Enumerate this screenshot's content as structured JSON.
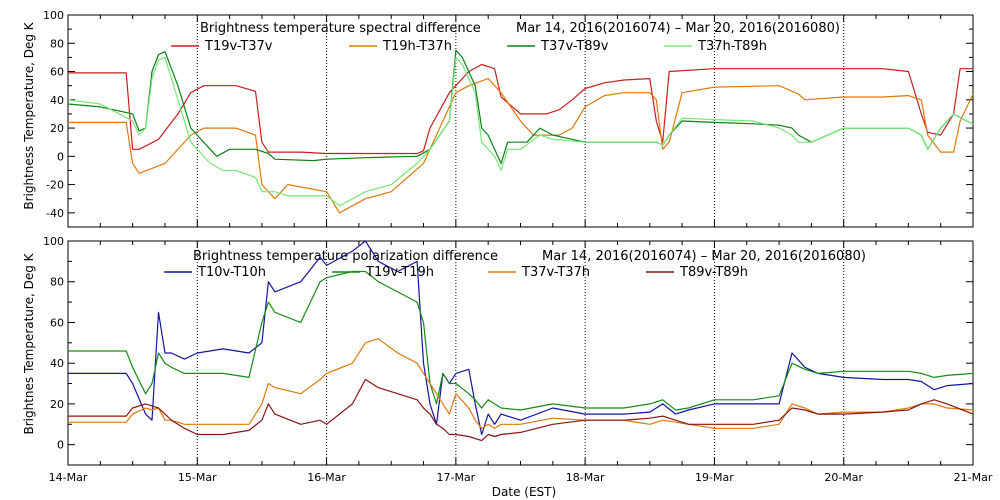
{
  "chart_data": [
    {
      "type": "line",
      "title": "Brightness temperature spectral difference",
      "date_range": "Mar 14, 2016(2016074)  – Mar 20, 2016(2016080)",
      "ylabel": "Brightness Temperature, Deg K",
      "xlabel": "",
      "ylim": [
        -50,
        100
      ],
      "yticks": [
        -40,
        -20,
        0,
        20,
        40,
        60,
        80,
        100
      ],
      "xlim": [
        14,
        21
      ],
      "grid": true,
      "legend_position": "top",
      "series": [
        {
          "name": "T19v-T37v",
          "color": "#c81e1e",
          "x": [
            14.0,
            14.45,
            14.5,
            14.55,
            14.7,
            14.85,
            14.95,
            15.05,
            15.3,
            15.45,
            15.5,
            15.55,
            15.8,
            16.0,
            16.3,
            16.7,
            16.75,
            16.8,
            16.95,
            17.1,
            17.2,
            17.3,
            17.35,
            17.5,
            17.7,
            17.8,
            17.9,
            18.0,
            18.15,
            18.3,
            18.5,
            18.55,
            18.6,
            18.65,
            19.0,
            19.5,
            20.0,
            20.3,
            20.5,
            20.6,
            20.65,
            20.75,
            20.85,
            20.9,
            21.0
          ],
          "y": [
            59,
            59,
            5,
            5,
            12,
            30,
            45,
            50,
            50,
            46,
            10,
            3,
            3,
            2,
            2,
            2,
            4,
            20,
            45,
            60,
            65,
            62,
            42,
            30,
            30,
            33,
            40,
            48,
            52,
            54,
            55,
            25,
            10,
            60,
            62,
            62,
            62,
            62,
            60,
            30,
            17,
            15,
            30,
            62,
            62
          ]
        },
        {
          "name": "T19h-T37h",
          "color": "#e0780a",
          "x": [
            14.0,
            14.45,
            14.5,
            14.55,
            14.75,
            14.95,
            15.05,
            15.2,
            15.3,
            15.45,
            15.5,
            15.6,
            15.7,
            16.0,
            16.1,
            16.3,
            16.5,
            16.75,
            16.8,
            16.9,
            17.0,
            17.1,
            17.25,
            17.35,
            17.5,
            17.6,
            17.7,
            17.8,
            17.9,
            18.0,
            18.15,
            18.3,
            18.5,
            18.55,
            18.6,
            18.65,
            18.75,
            19.0,
            19.5,
            19.65,
            19.7,
            20.0,
            20.3,
            20.5,
            20.6,
            20.65,
            20.75,
            20.85,
            20.9,
            21.0
          ],
          "y": [
            24,
            24,
            -5,
            -12,
            -5,
            15,
            20,
            20,
            20,
            15,
            -20,
            -30,
            -20,
            -25,
            -40,
            -30,
            -25,
            -5,
            5,
            25,
            45,
            50,
            55,
            45,
            25,
            15,
            15,
            15,
            20,
            35,
            43,
            45,
            45,
            40,
            5,
            10,
            45,
            49,
            50,
            44,
            40,
            42,
            42,
            43,
            40,
            15,
            3,
            3,
            25,
            44
          ]
        },
        {
          "name": "T37v-T89v",
          "color": "#0a8214",
          "x": [
            14.0,
            14.25,
            14.5,
            14.55,
            14.6,
            14.65,
            14.7,
            14.75,
            14.85,
            14.95,
            15.1,
            15.15,
            15.25,
            15.45,
            15.55,
            15.6,
            15.9,
            16.0,
            16.3,
            16.7,
            16.8,
            16.95,
            17.0,
            17.05,
            17.15,
            17.2,
            17.25,
            17.3,
            17.35,
            17.4,
            17.5,
            17.55,
            17.65,
            17.75,
            18.0,
            18.3,
            18.5,
            18.55,
            18.6,
            18.65,
            18.75,
            19.0,
            19.3,
            19.5,
            19.6,
            19.65,
            19.75,
            20.0,
            20.3,
            20.5,
            20.6,
            20.65,
            20.75,
            20.85,
            20.95,
            21.0
          ],
          "y": [
            37,
            35,
            30,
            18,
            20,
            60,
            72,
            74,
            50,
            20,
            5,
            0,
            5,
            5,
            2,
            -2,
            -3,
            -2,
            -1,
            0,
            5,
            25,
            75,
            70,
            50,
            20,
            15,
            5,
            -5,
            10,
            10,
            10,
            20,
            15,
            10,
            10,
            10,
            10,
            8,
            15,
            25,
            24,
            23,
            22,
            20,
            15,
            10,
            20,
            20,
            20,
            15,
            5,
            20,
            30,
            25,
            23
          ]
        },
        {
          "name": "T37h-T89h",
          "color": "#78e678",
          "x": [
            14.0,
            14.25,
            14.5,
            14.55,
            14.6,
            14.65,
            14.7,
            14.75,
            14.85,
            14.95,
            15.1,
            15.2,
            15.3,
            15.45,
            15.5,
            15.6,
            15.7,
            16.0,
            16.1,
            16.3,
            16.5,
            16.7,
            16.8,
            16.95,
            17.0,
            17.05,
            17.15,
            17.2,
            17.3,
            17.35,
            17.4,
            17.5,
            17.65,
            17.75,
            18.0,
            18.3,
            18.5,
            18.55,
            18.6,
            18.65,
            18.75,
            19.0,
            19.3,
            19.5,
            19.6,
            19.65,
            19.75,
            20.0,
            20.3,
            20.5,
            20.6,
            20.65,
            20.75,
            20.85,
            20.95,
            21.0
          ],
          "y": [
            40,
            37,
            25,
            15,
            20,
            55,
            68,
            70,
            40,
            10,
            -5,
            -10,
            -10,
            -15,
            -25,
            -25,
            -28,
            -28,
            -35,
            -25,
            -20,
            -5,
            5,
            25,
            70,
            65,
            45,
            10,
            0,
            -10,
            5,
            5,
            15,
            12,
            10,
            10,
            10,
            10,
            8,
            15,
            27,
            26,
            25,
            20,
            15,
            10,
            10,
            20,
            20,
            20,
            15,
            5,
            20,
            30,
            25,
            23
          ]
        }
      ]
    },
    {
      "type": "line",
      "title": "Brightness temperature polarization difference",
      "date_range": "Mar 14, 2016(2016074)  – Mar 20, 2016(2016080)",
      "ylabel": "Brightnes Temperature, Deg K",
      "xlabel": "Date (EST)",
      "ylim": [
        -10,
        100
      ],
      "yticks": [
        0,
        20,
        40,
        60,
        80,
        100
      ],
      "xlim": [
        14,
        21
      ],
      "xticks": [
        14,
        15,
        16,
        17,
        18,
        19,
        20,
        21
      ],
      "xticklabels": [
        "14-Mar",
        "15-Mar",
        "16-Mar",
        "17-Mar",
        "18-Mar",
        "19-Mar",
        "20-Mar",
        "21-Mar"
      ],
      "grid": true,
      "legend_position": "top",
      "series": [
        {
          "name": "T10v-T10h",
          "color": "#1414a0",
          "x": [
            14.0,
            14.45,
            14.5,
            14.6,
            14.65,
            14.7,
            14.75,
            14.8,
            14.9,
            15.0,
            15.2,
            15.4,
            15.5,
            15.55,
            15.6,
            15.8,
            15.95,
            16.0,
            16.2,
            16.3,
            16.4,
            16.55,
            16.7,
            16.75,
            16.8,
            16.85,
            16.9,
            16.95,
            17.0,
            17.1,
            17.15,
            17.2,
            17.25,
            17.3,
            17.35,
            17.5,
            17.75,
            18.0,
            18.3,
            18.5,
            18.6,
            18.7,
            18.8,
            19.0,
            19.3,
            19.5,
            19.6,
            19.7,
            19.8,
            20.0,
            20.3,
            20.5,
            20.6,
            20.7,
            20.8,
            21.0
          ],
          "y": [
            35,
            35,
            30,
            15,
            12,
            65,
            45,
            45,
            42,
            45,
            47,
            45,
            50,
            80,
            75,
            80,
            92,
            88,
            95,
            100,
            90,
            85,
            90,
            40,
            20,
            10,
            35,
            30,
            35,
            37,
            20,
            5,
            15,
            10,
            15,
            12,
            18,
            15,
            15,
            16,
            20,
            15,
            17,
            20,
            20,
            20,
            45,
            38,
            35,
            33,
            32,
            32,
            31,
            27,
            29,
            30
          ]
        },
        {
          "name": "T19v-T19h",
          "color": "#148c14",
          "x": [
            14.0,
            14.45,
            14.5,
            14.6,
            14.65,
            14.7,
            14.75,
            14.8,
            14.9,
            15.0,
            15.2,
            15.4,
            15.5,
            15.55,
            15.6,
            15.8,
            15.95,
            16.0,
            16.2,
            16.3,
            16.4,
            16.55,
            16.7,
            16.75,
            16.8,
            16.85,
            16.9,
            16.95,
            17.0,
            17.1,
            17.15,
            17.2,
            17.25,
            17.3,
            17.35,
            17.5,
            17.75,
            18.0,
            18.3,
            18.5,
            18.6,
            18.7,
            18.8,
            19.0,
            19.3,
            19.5,
            19.6,
            19.7,
            19.8,
            20.0,
            20.3,
            20.5,
            20.6,
            20.7,
            20.8,
            21.0
          ],
          "y": [
            46,
            46,
            38,
            25,
            30,
            45,
            40,
            38,
            35,
            35,
            35,
            33,
            60,
            70,
            65,
            60,
            80,
            82,
            85,
            85,
            80,
            75,
            70,
            60,
            30,
            20,
            35,
            30,
            30,
            25,
            22,
            18,
            22,
            20,
            18,
            17,
            20,
            18,
            18,
            20,
            22,
            17,
            18,
            22,
            22,
            24,
            40,
            37,
            35,
            36,
            36,
            36,
            35,
            33,
            34,
            35
          ]
        },
        {
          "name": "T37v-T37h",
          "color": "#e0780a",
          "x": [
            14.0,
            14.45,
            14.5,
            14.6,
            14.65,
            14.7,
            14.75,
            14.8,
            14.9,
            15.0,
            15.2,
            15.4,
            15.5,
            15.55,
            15.6,
            15.8,
            15.95,
            16.0,
            16.2,
            16.3,
            16.4,
            16.55,
            16.7,
            16.75,
            16.8,
            16.85,
            16.9,
            16.95,
            17.0,
            17.1,
            17.15,
            17.2,
            17.25,
            17.3,
            17.35,
            17.5,
            17.75,
            18.0,
            18.3,
            18.5,
            18.6,
            18.7,
            18.8,
            19.0,
            19.3,
            19.5,
            19.6,
            19.7,
            19.8,
            20.0,
            20.3,
            20.5,
            20.6,
            20.7,
            20.8,
            21.0
          ],
          "y": [
            11,
            11,
            15,
            18,
            17,
            18,
            12,
            12,
            10,
            10,
            10,
            10,
            20,
            30,
            28,
            25,
            32,
            35,
            40,
            50,
            52,
            45,
            40,
            35,
            30,
            25,
            20,
            15,
            25,
            18,
            12,
            8,
            10,
            8,
            10,
            10,
            13,
            12,
            12,
            10,
            12,
            11,
            10,
            8,
            8,
            10,
            20,
            18,
            15,
            16,
            16,
            18,
            20,
            20,
            18,
            17
          ]
        },
        {
          "name": "T89v-T89h",
          "color": "#8c1414",
          "x": [
            14.0,
            14.45,
            14.5,
            14.6,
            14.65,
            14.7,
            14.75,
            14.8,
            14.9,
            15.0,
            15.2,
            15.4,
            15.5,
            15.55,
            15.6,
            15.8,
            15.95,
            16.0,
            16.2,
            16.3,
            16.4,
            16.55,
            16.7,
            16.75,
            16.8,
            16.85,
            16.9,
            16.95,
            17.0,
            17.1,
            17.15,
            17.2,
            17.25,
            17.3,
            17.35,
            17.5,
            17.75,
            18.0,
            18.3,
            18.5,
            18.6,
            18.7,
            18.8,
            19.0,
            19.3,
            19.5,
            19.6,
            19.7,
            19.8,
            20.0,
            20.3,
            20.5,
            20.6,
            20.7,
            20.8,
            21.0
          ],
          "y": [
            14,
            14,
            18,
            20,
            19,
            18,
            15,
            12,
            8,
            5,
            5,
            7,
            12,
            20,
            15,
            10,
            12,
            10,
            20,
            32,
            28,
            25,
            22,
            18,
            15,
            10,
            8,
            5,
            5,
            4,
            3,
            2,
            5,
            4,
            5,
            6,
            10,
            12,
            12,
            13,
            14,
            12,
            10,
            10,
            10,
            12,
            18,
            17,
            15,
            15,
            16,
            17,
            20,
            22,
            20,
            15
          ]
        }
      ]
    }
  ]
}
